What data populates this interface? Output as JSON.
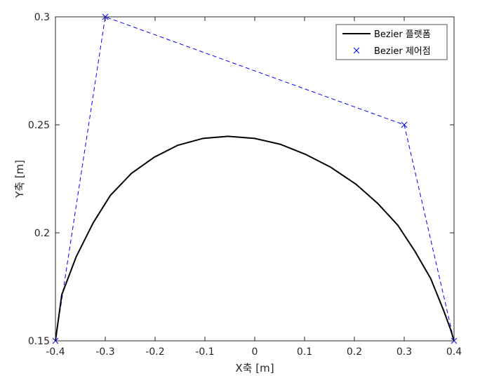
{
  "chart_data": {
    "type": "line",
    "xlabel": "X축 [m]",
    "ylabel": "Y축 [m]",
    "xlim": [
      -0.4,
      0.4
    ],
    "ylim": [
      0.15,
      0.3
    ],
    "xticks": [
      -0.4,
      -0.3,
      -0.2,
      -0.1,
      0,
      0.1,
      0.2,
      0.3,
      0.4
    ],
    "xtick_labels": [
      "-0.4",
      "-0.3",
      "-0.2",
      "-0.1",
      "0",
      "0.1",
      "0.2",
      "0.3",
      "0.4"
    ],
    "yticks": [
      0.15,
      0.2,
      0.25,
      0.3
    ],
    "ytick_labels": [
      "0.15",
      "0.2",
      "0.25",
      "0.3"
    ],
    "grid": false,
    "legend_position": "top-right",
    "series": [
      {
        "name": "Bezier 플랫폼",
        "style": "solid",
        "color": "#000000",
        "x": [
          -0.4,
          -0.3873,
          -0.3584,
          -0.3243,
          -0.2898,
          -0.2476,
          -0.2018,
          -0.1548,
          -0.1043,
          -0.0536,
          -0.0001,
          0.0512,
          0.1013,
          0.1523,
          0.2032,
          0.2473,
          0.2872,
          0.3217,
          0.3532,
          0.3792,
          0.3927,
          0.4
        ],
        "y": [
          0.15,
          0.1713,
          0.1889,
          0.2046,
          0.2173,
          0.2275,
          0.235,
          0.2405,
          0.2437,
          0.2447,
          0.2437,
          0.241,
          0.2364,
          0.2304,
          0.2225,
          0.2135,
          0.2035,
          0.1914,
          0.1788,
          0.164,
          0.1555,
          0.15
        ]
      },
      {
        "name": "Bezier 제어점",
        "style": "dashed-with-x-markers",
        "color": "#0000ff",
        "x": [
          -0.4,
          -0.3,
          0.3,
          0.4
        ],
        "y": [
          0.15,
          0.3,
          0.25,
          0.15
        ]
      }
    ]
  }
}
